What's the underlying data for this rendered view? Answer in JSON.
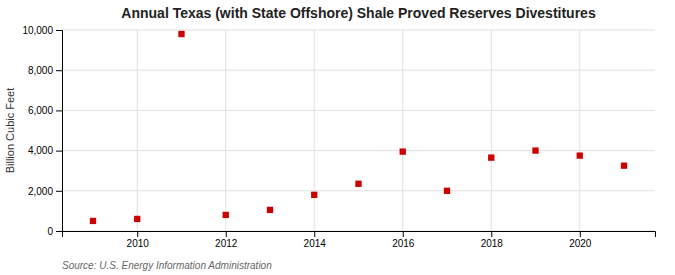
{
  "chart_data": {
    "type": "scatter",
    "title": "Annual Texas (with State Offshore) Shale Proved Reserves Divestitures",
    "ylabel": "Billion Cubic Feet",
    "source": "Source: U.S. Energy Information Administration",
    "x": [
      2009,
      2010,
      2011,
      2012,
      2013,
      2014,
      2015,
      2016,
      2017,
      2018,
      2019,
      2020,
      2021
    ],
    "values": [
      500,
      600,
      9800,
      800,
      1050,
      1800,
      2350,
      3950,
      2000,
      3650,
      4000,
      3750,
      3250
    ],
    "color": "#cc0000",
    "marker": "square",
    "xlim": [
      2008.3,
      2021.7
    ],
    "xticks": [
      2010,
      2012,
      2014,
      2016,
      2018,
      2020
    ],
    "ylim": [
      0,
      10000
    ],
    "yticks": [
      0,
      {
        "value": 2000,
        "label": "2,000"
      },
      {
        "value": 4000,
        "label": "4,000"
      },
      {
        "value": 6000,
        "label": "6,000"
      },
      {
        "value": 8000,
        "label": "8,000"
      },
      {
        "value": 10000,
        "label": "10,000"
      }
    ],
    "grid": true
  }
}
